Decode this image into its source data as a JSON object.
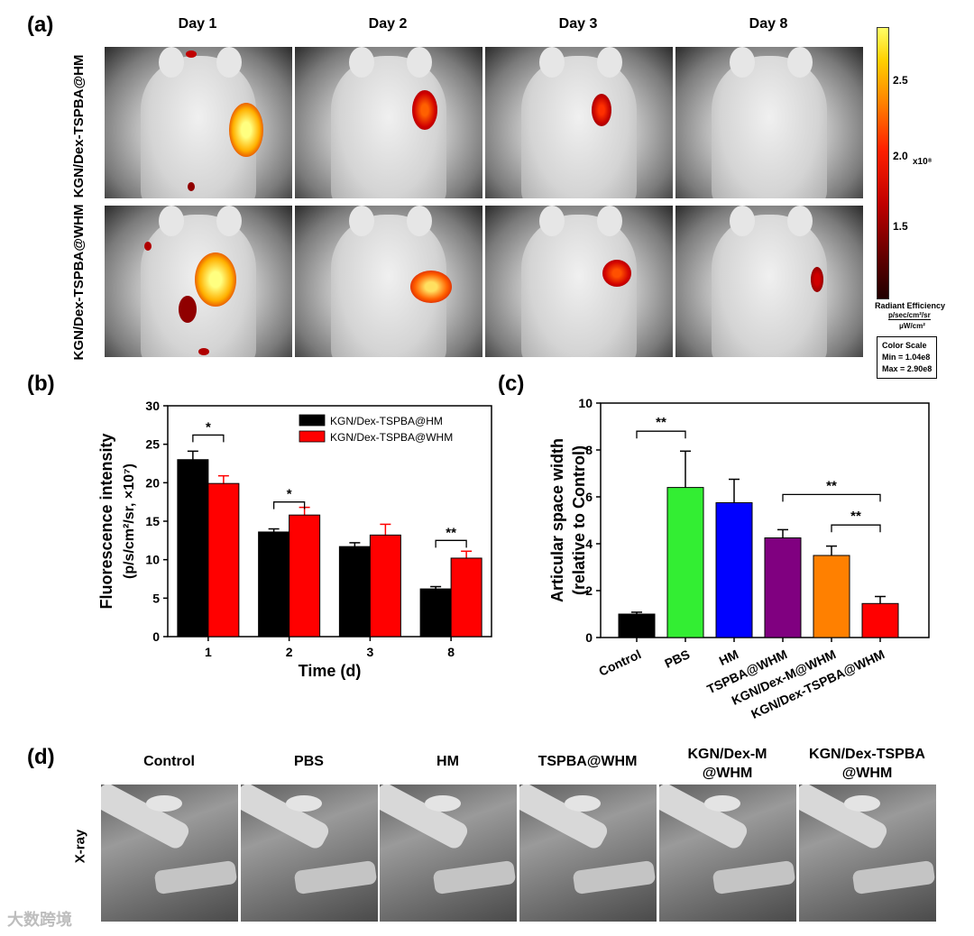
{
  "panel_a": {
    "letter": "(a)",
    "days": [
      "Day 1",
      "Day 2",
      "Day 3",
      "Day 8"
    ],
    "rows": [
      "KGN/Dex-TSPBA@HM",
      "KGN/Dex-TSPBA@WHM"
    ],
    "colorbar": {
      "ticks": [
        "2.5",
        "2.0",
        "1.5"
      ],
      "exponent": "x10⁸",
      "unit_title": "Radiant Efficiency",
      "unit_numerator": "p/sec/cm²/sr",
      "unit_denominator": "μW/cm²",
      "scale_title": "Color Scale",
      "scale_min": "Min = 1.04e8",
      "scale_max": "Max = 2.90e8",
      "colors": [
        "#ffff66",
        "#ff8000",
        "#ff2000",
        "#c00000",
        "#200000"
      ]
    }
  },
  "panel_b": {
    "letter": "(b)",
    "significance": [
      "*",
      "*",
      "**"
    ]
  },
  "panel_c": {
    "letter": "(c)",
    "significance": [
      "**",
      "**",
      "**"
    ]
  },
  "panel_d": {
    "letter": "(d)",
    "row_label": "X-ray",
    "groups": [
      "Control",
      "PBS",
      "HM",
      "TSPBA@WHM",
      "KGN/Dex-M\n@WHM",
      "KGN/Dex-TSPBA\n@WHM"
    ]
  },
  "watermark": "大数跨境",
  "chart_data": [
    {
      "type": "bar",
      "title": "",
      "xlabel": "Time (d)",
      "ylabel": "Fluorescence intensity (p/s/cm²/sr, ×10⁷)",
      "categories": [
        "1",
        "2",
        "3",
        "8"
      ],
      "ylim": [
        0,
        30
      ],
      "yticks": [
        0,
        5,
        10,
        15,
        20,
        25,
        30
      ],
      "legend_position": "top-right",
      "series": [
        {
          "name": "KGN/Dex-TSPBA@HM",
          "color": "#000000",
          "values": [
            23.0,
            13.6,
            11.7,
            6.2
          ],
          "errors": [
            1.1,
            0.4,
            0.5,
            0.3
          ]
        },
        {
          "name": "KGN/Dex-TSPBA@WHM",
          "color": "#ff0000",
          "values": [
            19.9,
            15.8,
            13.2,
            10.2
          ],
          "errors": [
            1.0,
            1.0,
            1.4,
            0.9
          ]
        }
      ]
    },
    {
      "type": "bar",
      "title": "",
      "xlabel": "",
      "ylabel": "Articular space width (relative to Control)",
      "categories": [
        "Control",
        "PBS",
        "HM",
        "TSPBA@WHM",
        "KGN/Dex-M@WHM",
        "KGN/Dex-TSPBA@WHM"
      ],
      "values": [
        1.0,
        6.4,
        5.75,
        4.25,
        3.5,
        1.45
      ],
      "errors": [
        0.08,
        1.55,
        1.0,
        0.35,
        0.4,
        0.3
      ],
      "colors": [
        "#000000",
        "#33ee33",
        "#0000ff",
        "#800080",
        "#ff8000",
        "#ff0000"
      ],
      "ylim": [
        0,
        10
      ],
      "yticks": [
        0,
        2,
        4,
        6,
        8,
        10
      ]
    }
  ]
}
